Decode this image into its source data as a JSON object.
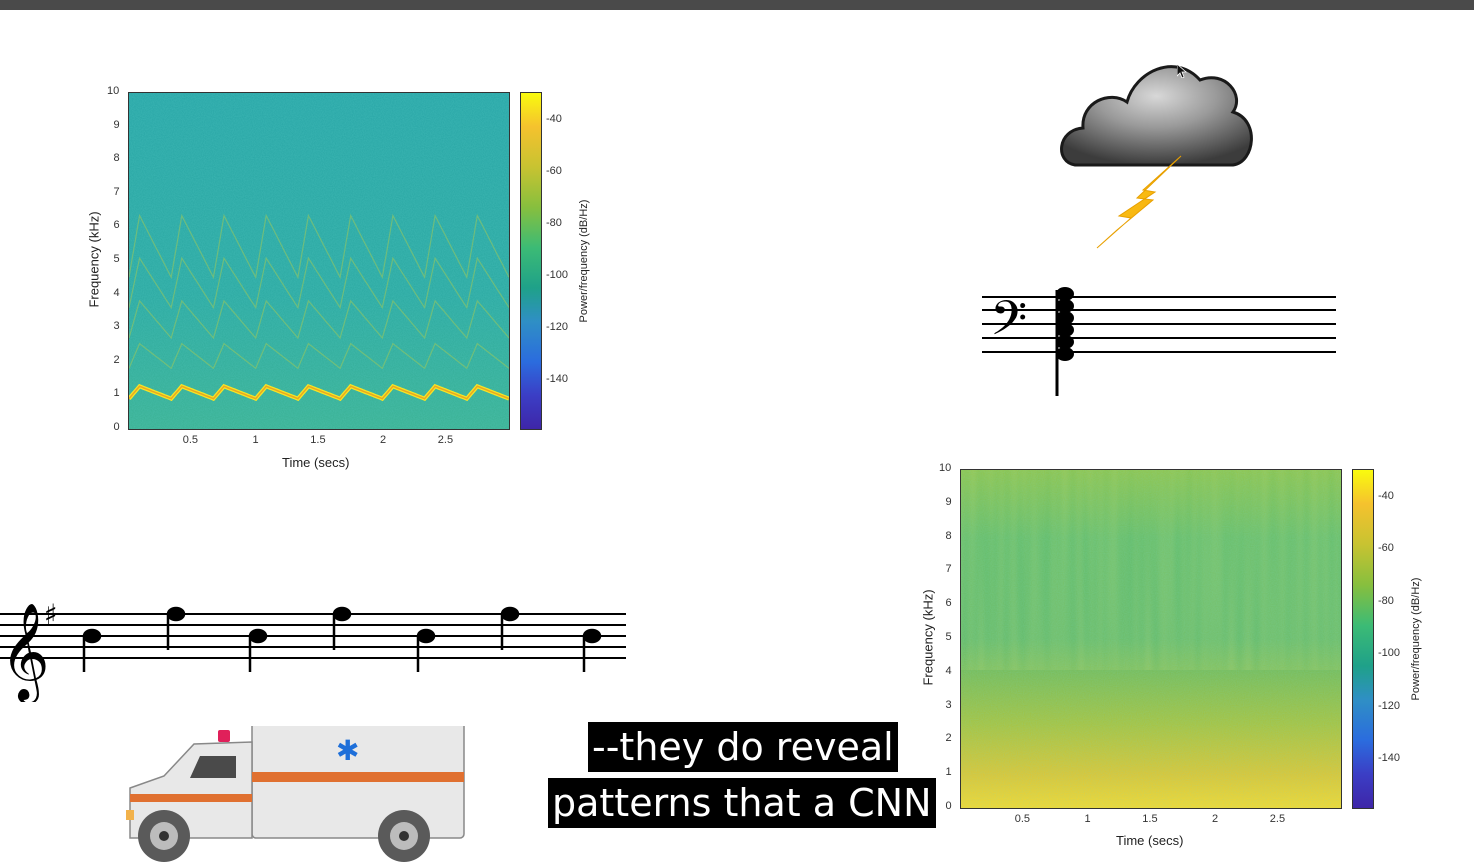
{
  "spectrogram_top": {
    "ylabel": "Frequency (kHz)",
    "xlabel": "Time (secs)",
    "colorbar_label": "Power/frequency (dB/Hz)",
    "y_ticks": [
      "0",
      "1",
      "2",
      "3",
      "4",
      "5",
      "6",
      "7",
      "8",
      "9",
      "10"
    ],
    "x_ticks": [
      "0.5",
      "1",
      "1.5",
      "2",
      "2.5"
    ],
    "colorbar_ticks": [
      "-40",
      "-60",
      "-80",
      "-100",
      "-120",
      "-140"
    ]
  },
  "spectrogram_bottom": {
    "ylabel": "Frequency (kHz)",
    "xlabel": "Time (secs)",
    "colorbar_label": "Power/frequency (dB/Hz)",
    "y_ticks": [
      "0",
      "1",
      "2",
      "3",
      "4",
      "5",
      "6",
      "7",
      "8",
      "9",
      "10"
    ],
    "x_ticks": [
      "0.5",
      "1",
      "1.5",
      "2",
      "2.5"
    ],
    "colorbar_ticks": [
      "-40",
      "-60",
      "-80",
      "-100",
      "-120",
      "-140"
    ]
  },
  "caption": {
    "line1": "--they do reveal",
    "line2": "patterns that a CNN"
  },
  "icons": {
    "cloud": "thunder-cloud-icon",
    "bass_staff": "bass-clef-chord-icon",
    "treble_staff": "treble-clef-melody-icon",
    "ambulance": "ambulance-icon"
  },
  "colors": {
    "top_bar": "#4a4a4a",
    "caption_bg": "#000000",
    "caption_text": "#ffffff",
    "siren_stripe": "#e07030",
    "ambulance_star": "#1e6fd9"
  }
}
